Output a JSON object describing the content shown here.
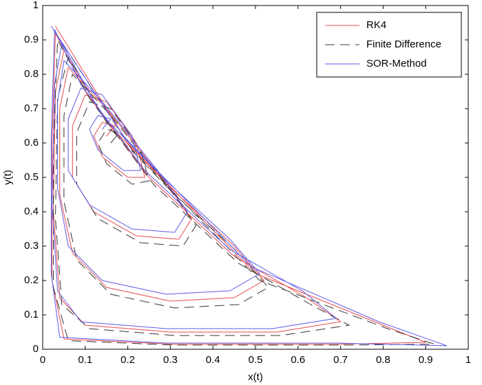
{
  "chart_data": {
    "type": "line",
    "xlabel": "x(t)",
    "ylabel": "y(t)",
    "xlim": [
      0,
      1
    ],
    "ylim": [
      0,
      1
    ],
    "xticks": [
      0,
      0.1,
      0.2,
      0.3,
      0.4,
      0.5,
      0.6,
      0.7,
      0.8,
      0.9,
      1
    ],
    "yticks": [
      0,
      0.1,
      0.2,
      0.3,
      0.4,
      0.5,
      0.6,
      0.7,
      0.8,
      0.9,
      1
    ],
    "legend": "northeast",
    "series": [
      {
        "name": "RK4",
        "color": "#e8484a",
        "linestyle": "solid",
        "x": [
          0.15,
          0.17,
          0.14,
          0.12,
          0.14,
          0.2,
          0.24,
          0.22,
          0.15,
          0.1,
          0.07,
          0.07,
          0.12,
          0.22,
          0.32,
          0.35,
          0.28,
          0.15,
          0.06,
          0.04,
          0.04,
          0.07,
          0.15,
          0.3,
          0.45,
          0.52,
          0.45,
          0.3,
          0.15,
          0.05,
          0.03,
          0.025,
          0.04,
          0.1,
          0.3,
          0.55,
          0.7,
          0.62,
          0.45,
          0.25,
          0.1,
          0.03,
          0.022,
          0.022,
          0.05,
          0.3,
          0.7,
          0.9,
          0.8,
          0.5,
          0.2,
          0.03
        ],
        "values": [
          0.62,
          0.65,
          0.66,
          0.62,
          0.56,
          0.5,
          0.5,
          0.6,
          0.72,
          0.74,
          0.65,
          0.5,
          0.4,
          0.33,
          0.32,
          0.38,
          0.5,
          0.7,
          0.82,
          0.7,
          0.45,
          0.28,
          0.18,
          0.14,
          0.15,
          0.2,
          0.3,
          0.47,
          0.66,
          0.87,
          0.75,
          0.4,
          0.15,
          0.07,
          0.05,
          0.05,
          0.08,
          0.15,
          0.27,
          0.5,
          0.75,
          0.92,
          0.6,
          0.2,
          0.03,
          0.015,
          0.015,
          0.02,
          0.07,
          0.22,
          0.6,
          0.94
        ]
      },
      {
        "name": "Finite Difference",
        "color": "#333333",
        "linestyle": "dashed",
        "x": [
          0.16,
          0.18,
          0.15,
          0.13,
          0.15,
          0.21,
          0.25,
          0.23,
          0.16,
          0.11,
          0.08,
          0.08,
          0.13,
          0.23,
          0.33,
          0.36,
          0.29,
          0.16,
          0.07,
          0.05,
          0.05,
          0.08,
          0.16,
          0.31,
          0.46,
          0.53,
          0.46,
          0.31,
          0.16,
          0.06,
          0.035,
          0.03,
          0.045,
          0.11,
          0.31,
          0.56,
          0.72,
          0.63,
          0.46,
          0.26,
          0.11,
          0.035,
          0.025,
          0.025,
          0.06,
          0.31,
          0.71,
          0.92,
          0.81,
          0.51,
          0.21,
          0.025
        ],
        "values": [
          0.6,
          0.63,
          0.64,
          0.6,
          0.54,
          0.48,
          0.49,
          0.58,
          0.7,
          0.72,
          0.63,
          0.48,
          0.38,
          0.31,
          0.3,
          0.36,
          0.48,
          0.68,
          0.8,
          0.68,
          0.43,
          0.26,
          0.16,
          0.12,
          0.13,
          0.18,
          0.28,
          0.45,
          0.64,
          0.85,
          0.73,
          0.38,
          0.13,
          0.06,
          0.04,
          0.04,
          0.07,
          0.13,
          0.25,
          0.48,
          0.73,
          0.9,
          0.58,
          0.18,
          0.025,
          0.012,
          0.012,
          0.015,
          0.06,
          0.2,
          0.58,
          0.93
        ]
      },
      {
        "name": "SOR-Method",
        "color": "#5a5ae6",
        "linestyle": "solid",
        "x": [
          0.14,
          0.16,
          0.13,
          0.11,
          0.13,
          0.19,
          0.23,
          0.21,
          0.14,
          0.09,
          0.06,
          0.06,
          0.11,
          0.21,
          0.31,
          0.34,
          0.27,
          0.14,
          0.05,
          0.035,
          0.035,
          0.06,
          0.14,
          0.29,
          0.44,
          0.51,
          0.44,
          0.29,
          0.14,
          0.045,
          0.028,
          0.022,
          0.035,
          0.09,
          0.29,
          0.54,
          0.69,
          0.61,
          0.44,
          0.24,
          0.09,
          0.028,
          0.02,
          0.02,
          0.04,
          0.29,
          0.69,
          0.95,
          0.79,
          0.49,
          0.19,
          0.02
        ],
        "values": [
          0.64,
          0.67,
          0.68,
          0.64,
          0.58,
          0.52,
          0.52,
          0.62,
          0.74,
          0.76,
          0.67,
          0.52,
          0.42,
          0.35,
          0.34,
          0.4,
          0.52,
          0.72,
          0.84,
          0.72,
          0.47,
          0.3,
          0.2,
          0.16,
          0.17,
          0.22,
          0.32,
          0.49,
          0.68,
          0.89,
          0.77,
          0.42,
          0.17,
          0.08,
          0.06,
          0.06,
          0.09,
          0.17,
          0.29,
          0.52,
          0.77,
          0.93,
          0.62,
          0.22,
          0.035,
          0.018,
          0.018,
          0.01,
          0.08,
          0.24,
          0.62,
          0.94
        ]
      }
    ]
  }
}
